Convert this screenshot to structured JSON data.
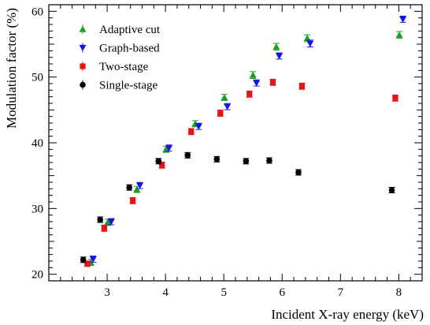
{
  "chart_data": {
    "type": "scatter",
    "title": "",
    "xlabel": "Incident X-ray energy (keV)",
    "ylabel": "Modulation factor (%)",
    "xlim": [
      2.0,
      8.4
    ],
    "ylim": [
      19.0,
      61.0
    ],
    "x_ticks": [
      3,
      4,
      5,
      6,
      7,
      8
    ],
    "y_ticks": [
      20,
      30,
      40,
      50,
      60
    ],
    "legend_position": "top-left",
    "grid": false,
    "series": [
      {
        "name": "Adaptive cut",
        "color": "#1e9e1e",
        "marker": "triangle-up",
        "points": [
          {
            "x": 2.72,
            "y": 21.8,
            "err": 0.35
          },
          {
            "x": 3.01,
            "y": 27.9,
            "err": 0.35
          },
          {
            "x": 3.51,
            "y": 32.9,
            "err": 0.35
          },
          {
            "x": 4.01,
            "y": 39.0,
            "err": 0.35
          },
          {
            "x": 4.51,
            "y": 42.9,
            "err": 0.35
          },
          {
            "x": 5.01,
            "y": 46.9,
            "err": 0.35
          },
          {
            "x": 5.5,
            "y": 50.3,
            "err": 0.4
          },
          {
            "x": 5.9,
            "y": 54.6,
            "err": 0.4
          },
          {
            "x": 6.43,
            "y": 55.9,
            "err": 0.4
          },
          {
            "x": 8.01,
            "y": 56.4,
            "err": 0.4
          }
        ]
      },
      {
        "name": "Graph-based",
        "color": "#1414e6",
        "marker": "triangle-down",
        "points": [
          {
            "x": 2.76,
            "y": 22.3,
            "err": 0.35
          },
          {
            "x": 3.07,
            "y": 28.0,
            "err": 0.35
          },
          {
            "x": 3.56,
            "y": 33.5,
            "err": 0.35
          },
          {
            "x": 4.06,
            "y": 39.2,
            "err": 0.35
          },
          {
            "x": 4.57,
            "y": 42.5,
            "err": 0.35
          },
          {
            "x": 5.06,
            "y": 45.5,
            "err": 0.35
          },
          {
            "x": 5.56,
            "y": 49.1,
            "err": 0.35
          },
          {
            "x": 5.95,
            "y": 53.2,
            "err": 0.35
          },
          {
            "x": 6.48,
            "y": 55.1,
            "err": 0.4
          },
          {
            "x": 8.07,
            "y": 58.8,
            "err": 0.35
          }
        ]
      },
      {
        "name": "Two-stage",
        "color": "#e61414",
        "marker": "square",
        "points": [
          {
            "x": 2.66,
            "y": 21.6,
            "err": 0.3
          },
          {
            "x": 2.95,
            "y": 27.0,
            "err": 0.35
          },
          {
            "x": 3.44,
            "y": 31.2,
            "err": 0.35
          },
          {
            "x": 3.94,
            "y": 36.6,
            "err": 0.35
          },
          {
            "x": 4.44,
            "y": 41.7,
            "err": 0.35
          },
          {
            "x": 4.94,
            "y": 44.5,
            "err": 0.35
          },
          {
            "x": 5.44,
            "y": 47.4,
            "err": 0.35
          },
          {
            "x": 5.84,
            "y": 49.2,
            "err": 0.35
          },
          {
            "x": 6.34,
            "y": 48.6,
            "err": 0.35
          },
          {
            "x": 7.94,
            "y": 46.8,
            "err": 0.35
          }
        ]
      },
      {
        "name": "Single-stage",
        "color": "#000000",
        "marker": "circle",
        "points": [
          {
            "x": 2.59,
            "y": 22.2,
            "err": 0.3
          },
          {
            "x": 2.88,
            "y": 28.3,
            "err": 0.3
          },
          {
            "x": 3.38,
            "y": 33.2,
            "err": 0.3
          },
          {
            "x": 3.88,
            "y": 37.2,
            "err": 0.3
          },
          {
            "x": 4.38,
            "y": 38.1,
            "err": 0.3
          },
          {
            "x": 4.88,
            "y": 37.5,
            "err": 0.3
          },
          {
            "x": 5.38,
            "y": 37.2,
            "err": 0.3
          },
          {
            "x": 5.78,
            "y": 37.3,
            "err": 0.3
          },
          {
            "x": 6.28,
            "y": 35.5,
            "err": 0.3
          },
          {
            "x": 7.88,
            "y": 32.8,
            "err": 0.3
          }
        ]
      }
    ]
  }
}
